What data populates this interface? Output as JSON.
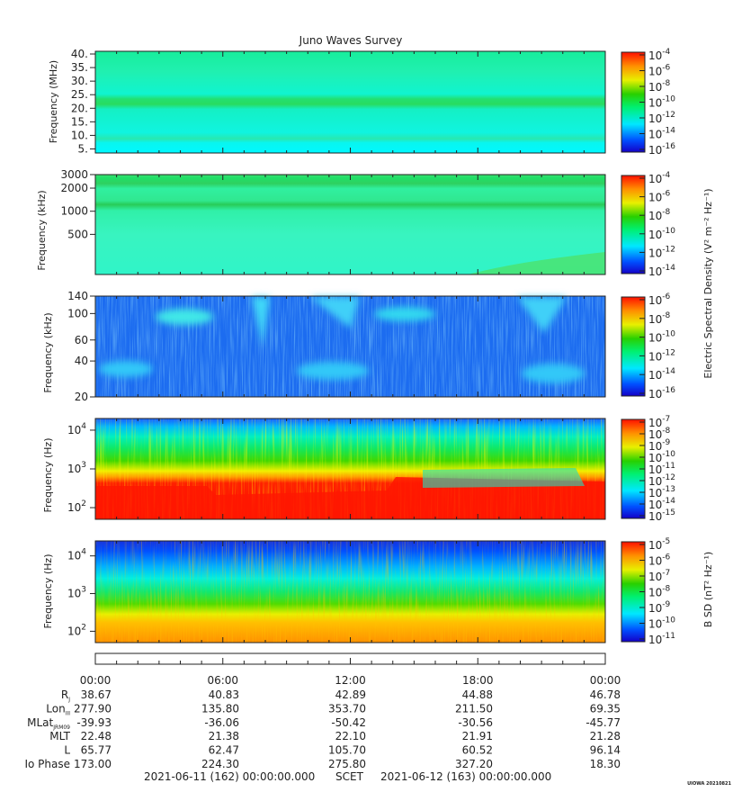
{
  "chart_data": {
    "type": "heatmap",
    "title": "Juno Waves Survey",
    "x_ticks": [
      "00:00",
      "06:00",
      "12:00",
      "18:00",
      "00:00"
    ],
    "panels": [
      {
        "ylabel": "Frequency (MHz)",
        "y_scale": "linear",
        "yticks": [
          "40.",
          "35.",
          "30.",
          "25.",
          "20.",
          "15.",
          "10.",
          "5."
        ],
        "ylim": [
          3.5,
          41
        ],
        "colorbar_ticks": [
          "-4",
          "-6",
          "-8",
          "-10",
          "-12",
          "-14",
          "-16"
        ],
        "colorbar_label": ""
      },
      {
        "ylabel": "Frequency (kHz)",
        "y_scale": "log",
        "yticks": [
          "3000",
          "2000",
          "1000",
          "500"
        ],
        "ylim": [
          150,
          3000
        ],
        "colorbar_ticks": [
          "-4",
          "-6",
          "-8",
          "-10",
          "-12",
          "-14"
        ],
        "colorbar_label": "Electric Spectral Density (V² m⁻² Hz⁻¹)"
      },
      {
        "ylabel": "Frequency (kHz)",
        "y_scale": "log",
        "yticks": [
          "140",
          "100",
          "60",
          "40",
          "20"
        ],
        "ylim": [
          20,
          140
        ],
        "colorbar_ticks": [
          "-6",
          "-8",
          "-10",
          "-12",
          "-14",
          "-16"
        ],
        "colorbar_label": ""
      },
      {
        "ylabel": "Frequency (Hz)",
        "y_scale": "log",
        "yticks": [
          "4",
          "3",
          "2"
        ],
        "ylim": [
          50,
          20000
        ],
        "colorbar_ticks": [
          "-7",
          "-8",
          "-9",
          "-10",
          "-11",
          "-12",
          "-13",
          "-14",
          "-15"
        ],
        "colorbar_label": ""
      },
      {
        "ylabel": "Frequency (Hz)",
        "y_scale": "log",
        "yticks": [
          "4",
          "3",
          "2"
        ],
        "ylim": [
          50,
          25000
        ],
        "colorbar_ticks": [
          "-5",
          "-6",
          "-7",
          "-8",
          "-9",
          "-10",
          "-11"
        ],
        "colorbar_label": "B SD (nT² Hz⁻¹)"
      }
    ],
    "ephemeris": [
      {
        "label": "R",
        "sub": "J",
        "values": [
          "38.67",
          "40.83",
          "42.89",
          "44.88",
          "46.78"
        ]
      },
      {
        "label": "Lon",
        "sub": "III",
        "values": [
          "277.90",
          "135.80",
          "353.70",
          "211.50",
          "69.35"
        ]
      },
      {
        "label": "MLat",
        "sub": "JRM09",
        "values": [
          "-39.93",
          "-36.06",
          "-50.42",
          "-30.56",
          "-45.77"
        ]
      },
      {
        "label": "MLT",
        "sub": "",
        "values": [
          "22.48",
          "21.38",
          "22.10",
          "21.91",
          "21.28"
        ]
      },
      {
        "label": "L",
        "sub": "",
        "values": [
          "65.77",
          "62.47",
          "105.70",
          "60.52",
          "96.14"
        ]
      },
      {
        "label": "Io Phase",
        "sub": "",
        "values": [
          "173.00",
          "224.30",
          "275.80",
          "327.20",
          "18.30"
        ]
      }
    ],
    "footer": {
      "start": "2021-06-11 (162) 00:00:00.000",
      "scet": "SCET",
      "end": "2021-06-12 (163) 00:00:00.000",
      "credit": "UIOWA 20210821"
    }
  }
}
